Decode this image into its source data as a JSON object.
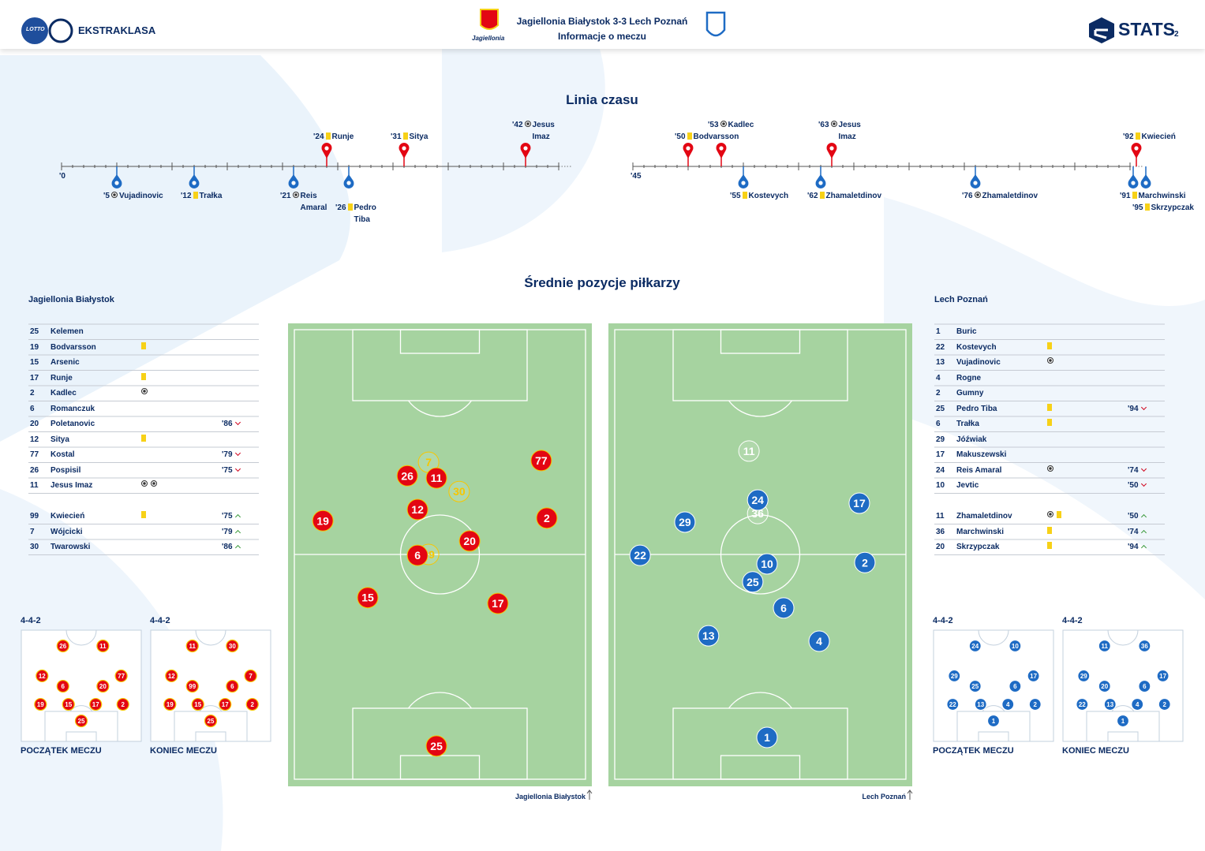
{
  "header": {
    "lotto": "LOTTO",
    "league": "EKSTRAKLASA",
    "home_crest": "Jagiellonia",
    "match": "Jagiellonia Białystok 3-3  Lech Poznań",
    "subtitle": "Informacje o meczu",
    "brand": "STATS",
    "page": "2"
  },
  "timeline": {
    "title": "Linia czasu",
    "half_starts": [
      "'0",
      "'45"
    ],
    "events": [
      {
        "minute": "'5",
        "type": "goal",
        "player": "Vujadinovic",
        "side": "away"
      },
      {
        "minute": "'12",
        "type": "yellow",
        "player": "Trałka",
        "side": "away"
      },
      {
        "minute": "'21",
        "type": "goal",
        "player": "Reis Amaral",
        "side": "away"
      },
      {
        "minute": "'24",
        "type": "yellow",
        "player": "Runje",
        "side": "home"
      },
      {
        "minute": "'26",
        "type": "yellow",
        "player": "Pedro Tiba",
        "side": "away"
      },
      {
        "minute": "'31",
        "type": "yellow",
        "player": "Sitya",
        "side": "home"
      },
      {
        "minute": "'42",
        "type": "goal",
        "player": "Jesus Imaz",
        "side": "home"
      },
      {
        "minute": "'50",
        "type": "yellow",
        "player": "Bodvarsson",
        "side": "home"
      },
      {
        "minute": "'53",
        "type": "goal",
        "player": "Kadlec",
        "side": "home"
      },
      {
        "minute": "'55",
        "type": "yellow",
        "player": "Kostevych",
        "side": "away"
      },
      {
        "minute": "'62",
        "type": "yellow",
        "player": "Zhamaletdinov",
        "side": "away"
      },
      {
        "minute": "'63",
        "type": "goal",
        "player": "Jesus Imaz",
        "side": "home"
      },
      {
        "minute": "'76",
        "type": "goal",
        "player": "Zhamaletdinov",
        "side": "away"
      },
      {
        "minute": "'91",
        "type": "yellow",
        "player": "Marchwinski",
        "side": "away"
      },
      {
        "minute": "'92",
        "type": "yellow",
        "player": "Kwiecień",
        "side": "home"
      },
      {
        "minute": "'95",
        "type": "yellow",
        "player": "Skrzypczak",
        "side": "away"
      }
    ]
  },
  "lineups": {
    "home": {
      "team": "Jagiellonia Białystok",
      "starters": [
        {
          "number": 25,
          "name": "Kelemen"
        },
        {
          "number": 19,
          "name": "Bodvarsson",
          "events": [
            "yellow"
          ]
        },
        {
          "number": 15,
          "name": "Arsenic"
        },
        {
          "number": 17,
          "name": "Runje",
          "events": [
            "yellow"
          ]
        },
        {
          "number": 2,
          "name": "Kadlec",
          "events": [
            "goal"
          ]
        },
        {
          "number": 6,
          "name": "Romanczuk"
        },
        {
          "number": 20,
          "name": "Poletanovic",
          "sub": "'86",
          "sub_dir": "out"
        },
        {
          "number": 12,
          "name": "Sitya",
          "events": [
            "yellow"
          ]
        },
        {
          "number": 77,
          "name": "Kostal",
          "sub": "'79",
          "sub_dir": "out"
        },
        {
          "number": 26,
          "name": "Pospisil",
          "sub": "'75",
          "sub_dir": "out"
        },
        {
          "number": 11,
          "name": "Jesus Imaz",
          "events": [
            "goal",
            "goal"
          ]
        }
      ],
      "subs": [
        {
          "number": 99,
          "name": "Kwiecień",
          "events": [
            "yellow"
          ],
          "sub": "'75",
          "sub_dir": "in"
        },
        {
          "number": 7,
          "name": "Wójcicki",
          "sub": "'79",
          "sub_dir": "in"
        },
        {
          "number": 30,
          "name": "Twarowski",
          "sub": "'86",
          "sub_dir": "in"
        }
      ]
    },
    "away": {
      "team": "Lech Poznań",
      "starters": [
        {
          "number": 1,
          "name": "Buric"
        },
        {
          "number": 22,
          "name": "Kostevych",
          "events": [
            "yellow"
          ]
        },
        {
          "number": 13,
          "name": "Vujadinovic",
          "events": [
            "goal"
          ]
        },
        {
          "number": 4,
          "name": "Rogne"
        },
        {
          "number": 2,
          "name": "Gumny"
        },
        {
          "number": 25,
          "name": "Pedro Tiba",
          "events": [
            "yellow"
          ],
          "sub": "'94",
          "sub_dir": "out"
        },
        {
          "number": 6,
          "name": "Trałka",
          "events": [
            "yellow"
          ]
        },
        {
          "number": 29,
          "name": "Jóźwiak"
        },
        {
          "number": 17,
          "name": "Makuszewski"
        },
        {
          "number": 24,
          "name": "Reis Amaral",
          "events": [
            "goal"
          ],
          "sub": "'74",
          "sub_dir": "out"
        },
        {
          "number": 10,
          "name": "Jevtic",
          "sub": "'50",
          "sub_dir": "out"
        }
      ],
      "subs": [
        {
          "number": 11,
          "name": "Zhamaletdinov",
          "events": [
            "goal",
            "yellow"
          ],
          "sub": "'50",
          "sub_dir": "in"
        },
        {
          "number": 36,
          "name": "Marchwinski",
          "events": [
            "yellow"
          ],
          "sub": "'74",
          "sub_dir": "in"
        },
        {
          "number": 20,
          "name": "Skrzypczak",
          "events": [
            "yellow"
          ],
          "sub": "'94",
          "sub_dir": "in"
        }
      ]
    }
  },
  "positions": {
    "title": "Średnie pozycje piłkarzy",
    "home": [
      {
        "number": 77,
        "x": 84.8,
        "y": 29.1
      },
      {
        "number": 7,
        "x": 46.1,
        "y": 29.5,
        "sub": true
      },
      {
        "number": 26,
        "x": 38.8,
        "y": 32.5
      },
      {
        "number": 11,
        "x": 48.8,
        "y": 33.0
      },
      {
        "number": 30,
        "x": 56.6,
        "y": 36.0,
        "sub": true
      },
      {
        "number": 12,
        "x": 42.3,
        "y": 40.0
      },
      {
        "number": 2,
        "x": 86.7,
        "y": 41.9
      },
      {
        "number": 19,
        "x": 9.8,
        "y": 42.5
      },
      {
        "number": 20,
        "x": 60.2,
        "y": 47.0
      },
      {
        "number": 99,
        "x": 46.1,
        "y": 50.0,
        "sub": true
      },
      {
        "number": 6,
        "x": 42.3,
        "y": 50.2
      },
      {
        "number": 15,
        "x": 25.2,
        "y": 59.6
      },
      {
        "number": 17,
        "x": 69.9,
        "y": 60.9
      },
      {
        "number": 25,
        "x": 48.8,
        "y": 92.6
      }
    ],
    "away": [
      {
        "number": 11,
        "x": 46.1,
        "y": 27.0,
        "sub": true
      },
      {
        "number": 36,
        "x": 49.1,
        "y": 40.9,
        "sub": true
      },
      {
        "number": 24,
        "x": 49.1,
        "y": 37.9
      },
      {
        "number": 17,
        "x": 84.0,
        "y": 38.6
      },
      {
        "number": 29,
        "x": 24.1,
        "y": 42.8
      },
      {
        "number": 22,
        "x": 8.7,
        "y": 50.2
      },
      {
        "number": 10,
        "x": 52.3,
        "y": 52.1
      },
      {
        "number": 2,
        "x": 85.9,
        "y": 51.8
      },
      {
        "number": 25,
        "x": 47.4,
        "y": 56.1
      },
      {
        "number": 6,
        "x": 58.0,
        "y": 61.9
      },
      {
        "number": 13,
        "x": 32.2,
        "y": 68.1
      },
      {
        "number": 4,
        "x": 70.2,
        "y": 69.3
      },
      {
        "number": 1,
        "x": 52.3,
        "y": 90.7
      }
    ]
  },
  "formations": [
    {
      "side": "home",
      "formation": "4-4-2",
      "caption": "POCZĄTEK MECZU",
      "players": [
        26,
        11,
        12,
        6,
        20,
        77,
        19,
        15,
        17,
        2,
        25
      ]
    },
    {
      "side": "home",
      "formation": "4-4-2",
      "caption": "KONIEC MECZU",
      "players": [
        11,
        30,
        12,
        99,
        6,
        7,
        19,
        15,
        17,
        2,
        25
      ]
    },
    {
      "side": "away",
      "formation": "4-4-2",
      "caption": "POCZĄTEK MECZU",
      "players": [
        24,
        10,
        29,
        25,
        6,
        17,
        22,
        13,
        4,
        2,
        1
      ]
    },
    {
      "side": "away",
      "formation": "4-4-2",
      "caption": "KONIEC MECZU",
      "players": [
        11,
        36,
        29,
        20,
        6,
        17,
        22,
        13,
        4,
        2,
        1
      ]
    }
  ]
}
